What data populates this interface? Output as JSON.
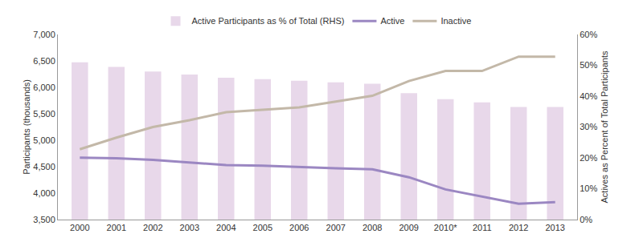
{
  "chart_data": {
    "type": "bar",
    "categories": [
      "2000",
      "2001",
      "2002",
      "2003",
      "2004",
      "2005",
      "2006",
      "2007",
      "2008",
      "2009",
      "2010*",
      "2011",
      "2012",
      "2013"
    ],
    "series": [
      {
        "name": "Active Participants as % of Total (RHS)",
        "type": "bar",
        "axis": "y2",
        "color": "#e8d8ea",
        "values": [
          51,
          49.5,
          48,
          47,
          46,
          45.5,
          45,
          44.5,
          44,
          41,
          39,
          38,
          36.5,
          36.5
        ]
      },
      {
        "name": "Active",
        "type": "line",
        "color": "#9b87c2",
        "values": [
          4670,
          4660,
          4630,
          4580,
          4530,
          4520,
          4490,
          4470,
          4450,
          4300,
          4070,
          3940,
          3800,
          3830
        ]
      },
      {
        "name": "Inactive",
        "type": "line",
        "color": "#c3b8a8",
        "values": [
          4830,
          5050,
          5250,
          5380,
          5530,
          5580,
          5620,
          5730,
          5840,
          6120,
          6310,
          6310,
          6580,
          6580
        ]
      }
    ],
    "y_label": "Participants (thousands)",
    "y2_label": "Actives as Percent of Total Participants",
    "ylim": [
      3500,
      7000
    ],
    "yticks": [
      {
        "value": 3500,
        "label": "3,500"
      },
      {
        "value": 4000,
        "label": "4,000"
      },
      {
        "value": 4500,
        "label": "4,500"
      },
      {
        "value": 5000,
        "label": "5,000"
      },
      {
        "value": 5500,
        "label": "5,500"
      },
      {
        "value": 6000,
        "label": "6,000"
      },
      {
        "value": 6500,
        "label": "6,500"
      },
      {
        "value": 7000,
        "label": "7,000"
      }
    ],
    "y2lim": [
      0,
      60
    ],
    "y2ticks": [
      {
        "value": 0,
        "label": "0%"
      },
      {
        "value": 10,
        "label": "10%"
      },
      {
        "value": 20,
        "label": "20%"
      },
      {
        "value": 30,
        "label": "30%"
      },
      {
        "value": 40,
        "label": "40%"
      },
      {
        "value": 50,
        "label": "50%"
      },
      {
        "value": 60,
        "label": "60%"
      }
    ],
    "grid": false,
    "legend": "top"
  }
}
